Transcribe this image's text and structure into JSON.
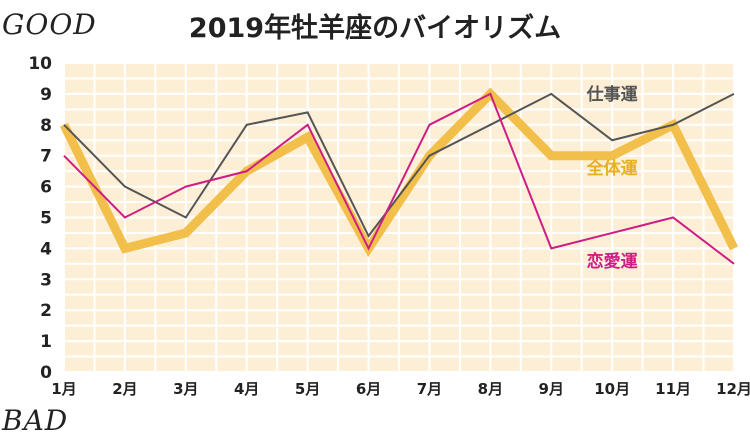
{
  "corner": {
    "good": "GOOD",
    "bad": "BAD"
  },
  "chart_data": {
    "type": "line",
    "title": "2019年牡羊座のバイオリズム",
    "categories": [
      "1月",
      "2月",
      "3月",
      "4月",
      "5月",
      "6月",
      "7月",
      "8月",
      "9月",
      "10月",
      "11月",
      "12月"
    ],
    "ylim": [
      0,
      10
    ],
    "yticks": [
      0,
      1,
      2,
      3,
      4,
      5,
      6,
      7,
      8,
      9,
      10
    ],
    "grid": true,
    "series": [
      {
        "name": "仕事運",
        "color": "#555555",
        "width": 2,
        "label_color": "#555555",
        "values": [
          8,
          6,
          5,
          8,
          8.4,
          4.4,
          7,
          8,
          9,
          7.5,
          8,
          9
        ]
      },
      {
        "name": "全体運",
        "color": "#F2BF4B",
        "width": 9,
        "label_color": "#E9AE22",
        "values": [
          8,
          4,
          4.5,
          6.5,
          7.6,
          4,
          7,
          9,
          7,
          7,
          8,
          4
        ]
      },
      {
        "name": "恋愛運",
        "color": "#D01D85",
        "width": 2,
        "label_color": "#D01D85",
        "values": [
          7,
          5,
          6,
          6.5,
          8,
          4,
          8,
          9,
          4,
          4.5,
          5,
          3.5
        ]
      }
    ],
    "colors": {
      "grid_bg": "#FDEFD6",
      "grid_line": "#FFFFFF"
    }
  }
}
